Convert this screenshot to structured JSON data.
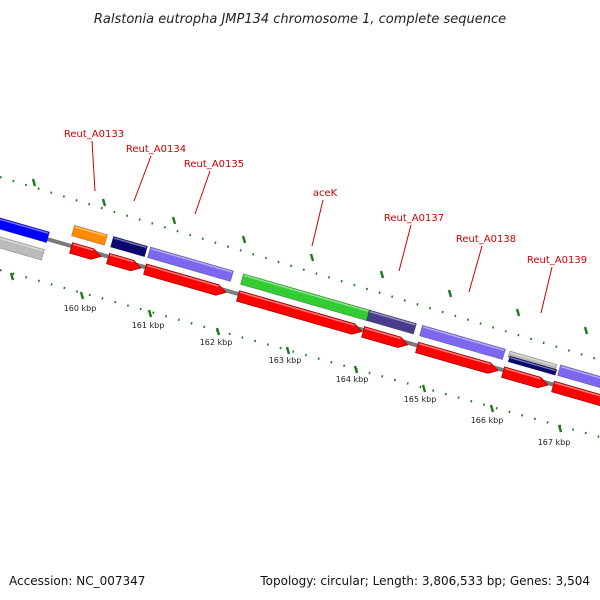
{
  "title": "Ralstonia eutropha JMP134 chromosome 1, complete sequence",
  "accession": "Accession: NC_007347",
  "summary": "Topology: circular; Length: 3,806,533 bp; Genes: 3,504",
  "colors": {
    "backbone": "#7a7a7a",
    "cds": "#ff0000",
    "tick": "#1e7a1e",
    "label": "#cc0000",
    "orange": "#ff8c00",
    "navy": "#0a0a6e",
    "lavender": "#7b68ee",
    "green": "#33cc33",
    "darkslate": "#483d8b",
    "blue": "#0000ff",
    "gray": "#bbbbbb"
  },
  "scale_ticks": [
    {
      "kbp": 160,
      "label": "160 kbp"
    },
    {
      "kbp": 161,
      "label": "161 kbp"
    },
    {
      "kbp": 162,
      "label": "162 kbp"
    },
    {
      "kbp": 163,
      "label": "163 kbp"
    },
    {
      "kbp": 164,
      "label": "164 kbp"
    },
    {
      "kbp": 165,
      "label": "165 kbp"
    },
    {
      "kbp": 166,
      "label": "166 kbp"
    },
    {
      "kbp": 167,
      "label": "167 kbp"
    }
  ],
  "gene_labels": [
    {
      "name": "Reut_A0133"
    },
    {
      "name": "Reut_A0134"
    },
    {
      "name": "Reut_A0135"
    },
    {
      "name": "aceK"
    },
    {
      "name": "Reut_A0137"
    },
    {
      "name": "Reut_A0138"
    },
    {
      "name": "Reut_A0139"
    }
  ]
}
